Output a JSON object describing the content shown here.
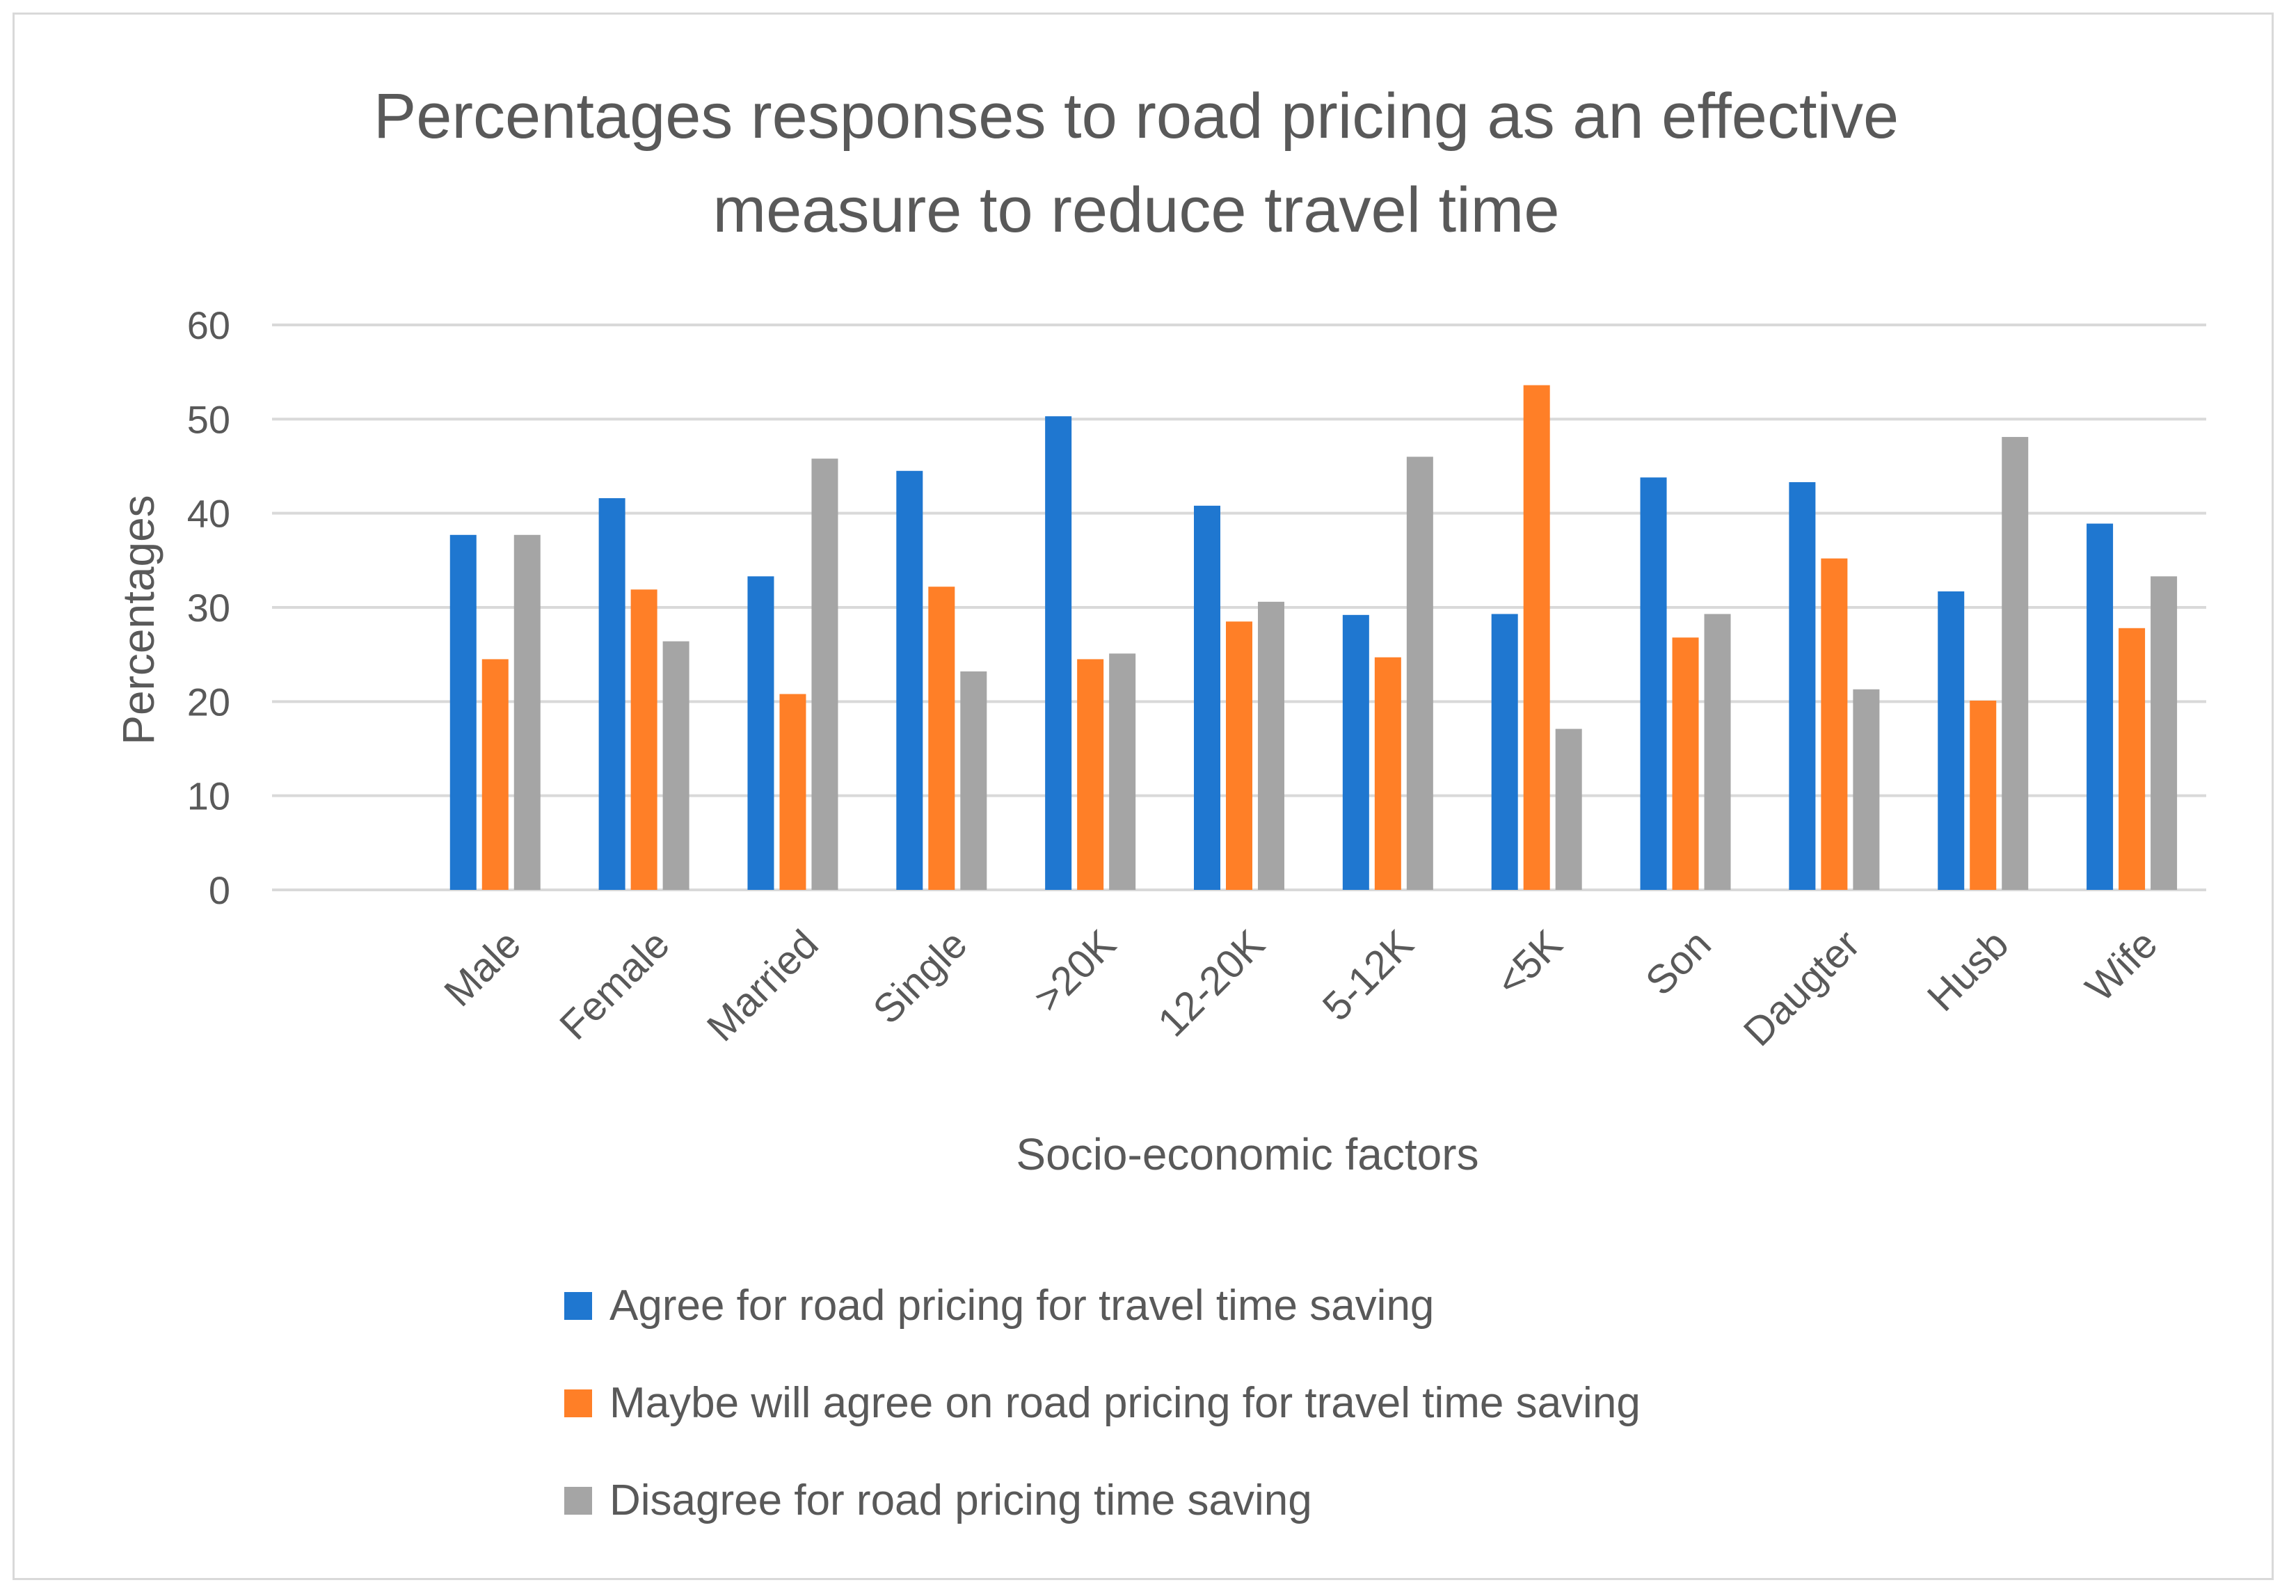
{
  "chart_data": {
    "type": "bar",
    "title": [
      "Percentages responses to road pricing as an effective",
      "measure to reduce travel time"
    ],
    "xlabel": "Socio-economic factors",
    "ylabel": "Percentages",
    "ylim": [
      0,
      60
    ],
    "yticks": [
      "0",
      "10",
      "20",
      "30",
      "40",
      "50",
      "60"
    ],
    "grid": true,
    "legend_position": "bottom",
    "categories": [
      "Male",
      "Female",
      "Married",
      "Single",
      ">20K",
      "12-20K",
      "5-12K",
      "<5K",
      "Son",
      "Daugter",
      "Husb",
      "Wife"
    ],
    "series": [
      {
        "name": "Agree for road pricing for travel time saving",
        "color": "#1F77D0",
        "values": [
          37.7,
          41.6,
          33.3,
          44.5,
          50.3,
          40.8,
          29.2,
          29.3,
          43.8,
          43.3,
          31.7,
          38.9
        ]
      },
      {
        "name": "Maybe will agree on road pricing for travel time saving",
        "color": "#FF7F27",
        "values": [
          24.5,
          31.9,
          20.8,
          32.2,
          24.5,
          28.5,
          24.7,
          53.6,
          26.8,
          35.2,
          20.1,
          27.8
        ]
      },
      {
        "name": "Disagree for road pricing  time saving",
        "color": "#A5A5A5",
        "values": [
          37.7,
          26.4,
          45.8,
          23.2,
          25.1,
          30.6,
          46.0,
          17.1,
          29.3,
          21.3,
          48.1,
          33.3
        ]
      }
    ]
  }
}
